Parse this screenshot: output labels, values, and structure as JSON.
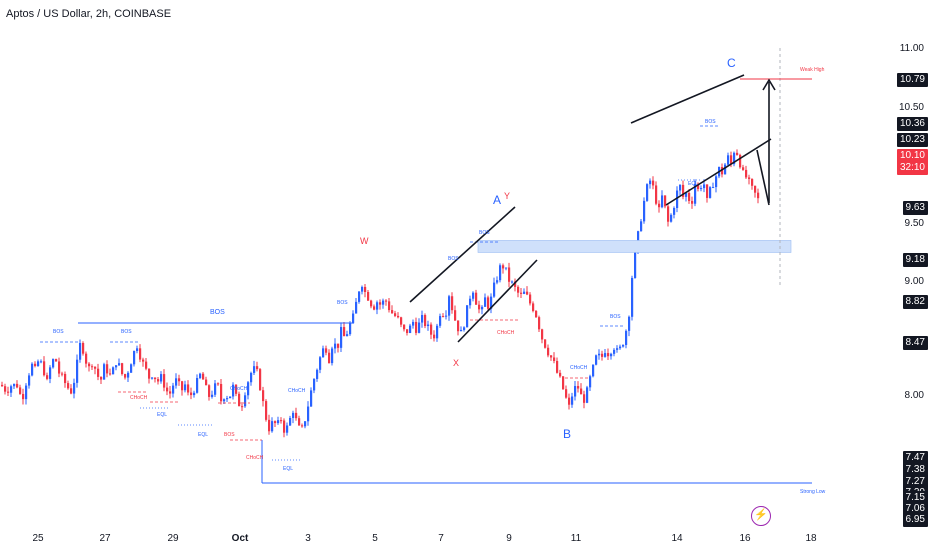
{
  "header": {
    "title": "Aptos / US Dollar, 2h, COINBASE"
  },
  "colors": {
    "up": "#2962ff",
    "down": "#f23645",
    "zone": "#cfe0fb",
    "text": "#131722"
  },
  "price_axis": {
    "ticks": [
      "11.00",
      "10.50",
      "9.50",
      "9.00",
      "8.00"
    ],
    "tags": [
      {
        "label": "10.79",
        "style": "dark"
      },
      {
        "label": "10.36",
        "style": "dark"
      },
      {
        "label": "10.23",
        "style": "dark"
      },
      {
        "label": "10.10",
        "style": "red"
      },
      {
        "label": "32:10",
        "style": "red"
      },
      {
        "label": "9.63",
        "style": "dark"
      },
      {
        "label": "9.18",
        "style": "dark"
      },
      {
        "label": "8.82",
        "style": "dark"
      },
      {
        "label": "8.47",
        "style": "dark"
      },
      {
        "label": "7.47",
        "style": "dark"
      },
      {
        "label": "7.38",
        "style": "dark"
      },
      {
        "label": "7.27",
        "style": "dark"
      },
      {
        "label": "7.20",
        "style": "dark"
      },
      {
        "label": "7.15",
        "style": "dark"
      },
      {
        "label": "7.06",
        "style": "dark"
      },
      {
        "label": "6.95",
        "style": "dark"
      }
    ]
  },
  "time_axis": [
    "25",
    "27",
    "29",
    "Oct",
    "3",
    "5",
    "7",
    "9",
    "11",
    "14",
    "16",
    "18"
  ],
  "annotations": {
    "wave_a": "A",
    "wave_b": "B",
    "wave_c": "C",
    "wave_w": "W",
    "wave_x": "X",
    "wave_y": "Y",
    "bos": "BOS",
    "choch": "CHoCH",
    "eql": "EQL",
    "weak_high": "Weak High",
    "strong_low": "Strong Low"
  },
  "chart_data": {
    "type": "candlestick",
    "title": "Aptos / US Dollar, 2h, COINBASE",
    "xlabels": [
      "25",
      "27",
      "29",
      "Oct",
      "3",
      "5",
      "7",
      "9",
      "11",
      "14",
      "16",
      "18"
    ],
    "ylim": [
      6.95,
      11.15
    ],
    "key_levels": {
      "weak_high": 10.79,
      "strong_low": 7.27,
      "last": 10.1,
      "zone": [
        9.55,
        9.68
      ]
    },
    "grid": false,
    "path": [
      [
        0,
        8.12
      ],
      [
        3,
        8.08
      ],
      [
        6,
        8.05
      ],
      [
        9,
        8.12
      ],
      [
        12,
        8.1
      ],
      [
        15,
        8.15
      ],
      [
        18,
        8.05
      ],
      [
        21,
        7.95
      ],
      [
        24,
        8.12
      ],
      [
        27,
        8.2
      ],
      [
        30,
        8.35
      ],
      [
        34,
        8.28
      ],
      [
        38,
        8.4
      ],
      [
        42,
        8.3
      ],
      [
        46,
        8.15
      ],
      [
        50,
        8.35
      ],
      [
        54,
        8.42
      ],
      [
        58,
        8.25
      ],
      [
        62,
        8.18
      ],
      [
        66,
        8.1
      ],
      [
        70,
        8.05
      ],
      [
        74,
        8.2
      ],
      [
        78,
        8.5
      ],
      [
        80,
        8.6
      ],
      [
        84,
        8.4
      ],
      [
        88,
        8.3
      ],
      [
        92,
        8.38
      ],
      [
        96,
        8.22
      ],
      [
        100,
        8.18
      ],
      [
        104,
        8.35
      ],
      [
        108,
        8.2
      ],
      [
        112,
        8.28
      ],
      [
        116,
        8.4
      ],
      [
        120,
        8.25
      ],
      [
        124,
        8.2
      ],
      [
        128,
        8.3
      ],
      [
        132,
        8.45
      ],
      [
        136,
        8.55
      ],
      [
        140,
        8.4
      ],
      [
        144,
        8.3
      ],
      [
        148,
        8.2
      ],
      [
        152,
        8.25
      ],
      [
        156,
        8.15
      ],
      [
        160,
        8.2
      ],
      [
        164,
        8.1
      ],
      [
        168,
        8.0
      ],
      [
        172,
        8.12
      ],
      [
        176,
        8.18
      ],
      [
        180,
        8.05
      ],
      [
        184,
        8.12
      ],
      [
        188,
        7.98
      ],
      [
        192,
        8.05
      ],
      [
        196,
        8.15
      ],
      [
        200,
        8.25
      ],
      [
        204,
        8.1
      ],
      [
        208,
        8.0
      ],
      [
        212,
        8.05
      ],
      [
        216,
        8.15
      ],
      [
        220,
        7.95
      ],
      [
        224,
        8.02
      ],
      [
        228,
        7.98
      ],
      [
        232,
        8.1
      ],
      [
        236,
        7.95
      ],
      [
        240,
        7.88
      ],
      [
        244,
        8.05
      ],
      [
        248,
        8.2
      ],
      [
        252,
        8.3
      ],
      [
        256,
        8.25
      ],
      [
        260,
        8.05
      ],
      [
        264,
        7.8
      ],
      [
        268,
        7.65
      ],
      [
        272,
        7.72
      ],
      [
        276,
        7.68
      ],
      [
        280,
        7.75
      ],
      [
        284,
        7.6
      ],
      [
        288,
        7.72
      ],
      [
        292,
        7.85
      ],
      [
        296,
        7.7
      ],
      [
        300,
        7.6
      ],
      [
        304,
        7.75
      ],
      [
        308,
        7.95
      ],
      [
        312,
        8.15
      ],
      [
        316,
        8.3
      ],
      [
        320,
        8.45
      ],
      [
        324,
        8.55
      ],
      [
        328,
        8.4
      ],
      [
        332,
        8.6
      ],
      [
        336,
        8.5
      ],
      [
        340,
        8.7
      ],
      [
        344,
        8.62
      ],
      [
        348,
        8.75
      ],
      [
        352,
        8.85
      ],
      [
        356,
        9.05
      ],
      [
        360,
        9.25
      ],
      [
        364,
        9.12
      ],
      [
        368,
        9.05
      ],
      [
        372,
        8.95
      ],
      [
        376,
        9.02
      ],
      [
        380,
        8.98
      ],
      [
        384,
        9.05
      ],
      [
        388,
        8.95
      ],
      [
        392,
        8.88
      ],
      [
        396,
        8.85
      ],
      [
        400,
        8.75
      ],
      [
        404,
        8.68
      ],
      [
        408,
        8.72
      ],
      [
        412,
        8.8
      ],
      [
        416,
        8.7
      ],
      [
        420,
        8.85
      ],
      [
        424,
        8.78
      ],
      [
        428,
        8.72
      ],
      [
        432,
        8.62
      ],
      [
        436,
        8.75
      ],
      [
        440,
        8.95
      ],
      [
        444,
        8.85
      ],
      [
        448,
        9.1
      ],
      [
        452,
        8.9
      ],
      [
        456,
        8.75
      ],
      [
        460,
        8.68
      ],
      [
        464,
        8.82
      ],
      [
        468,
        9.05
      ],
      [
        472,
        9.15
      ],
      [
        476,
        8.98
      ],
      [
        480,
        8.88
      ],
      [
        484,
        9.05
      ],
      [
        488,
        8.95
      ],
      [
        492,
        9.15
      ],
      [
        496,
        9.28
      ],
      [
        500,
        9.42
      ],
      [
        504,
        9.38
      ],
      [
        508,
        9.25
      ],
      [
        512,
        9.2
      ],
      [
        516,
        9.12
      ],
      [
        520,
        9.08
      ],
      [
        524,
        9.12
      ],
      [
        528,
        9.02
      ],
      [
        532,
        8.95
      ],
      [
        536,
        8.85
      ],
      [
        540,
        8.65
      ],
      [
        544,
        8.55
      ],
      [
        548,
        8.45
      ],
      [
        552,
        8.38
      ],
      [
        556,
        8.25
      ],
      [
        560,
        8.15
      ],
      [
        564,
        8.0
      ],
      [
        568,
        7.88
      ],
      [
        572,
        8.05
      ],
      [
        576,
        8.12
      ],
      [
        580,
        8.0
      ],
      [
        584,
        7.95
      ],
      [
        588,
        8.15
      ],
      [
        592,
        8.3
      ],
      [
        596,
        8.45
      ],
      [
        600,
        8.4
      ],
      [
        604,
        8.5
      ],
      [
        608,
        8.45
      ],
      [
        612,
        8.55
      ],
      [
        616,
        8.48
      ],
      [
        620,
        8.52
      ],
      [
        624,
        8.65
      ],
      [
        628,
        8.9
      ],
      [
        630,
        9.2
      ],
      [
        634,
        9.55
      ],
      [
        638,
        9.8
      ],
      [
        642,
        10.05
      ],
      [
        646,
        10.25
      ],
      [
        650,
        10.35
      ],
      [
        654,
        10.15
      ],
      [
        658,
        10.0
      ],
      [
        662,
        10.2
      ],
      [
        666,
        9.85
      ],
      [
        670,
        9.95
      ],
      [
        674,
        10.1
      ],
      [
        678,
        10.3
      ],
      [
        682,
        10.15
      ],
      [
        686,
        10.2
      ],
      [
        690,
        10.05
      ],
      [
        694,
        10.3
      ],
      [
        698,
        10.2
      ],
      [
        702,
        10.35
      ],
      [
        706,
        10.1
      ],
      [
        710,
        10.25
      ],
      [
        714,
        10.35
      ],
      [
        718,
        10.45
      ],
      [
        722,
        10.4
      ],
      [
        726,
        10.6
      ],
      [
        730,
        10.5
      ],
      [
        734,
        10.7
      ],
      [
        738,
        10.55
      ],
      [
        742,
        10.4
      ],
      [
        746,
        10.35
      ],
      [
        750,
        10.25
      ],
      [
        754,
        10.18
      ],
      [
        758,
        10.1
      ]
    ]
  }
}
